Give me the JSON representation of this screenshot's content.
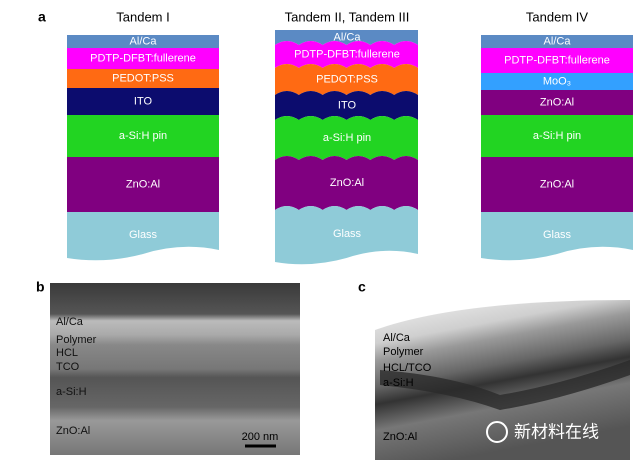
{
  "panels": [
    {
      "label": "a",
      "stacks": [
        {
          "title": "Tandem I",
          "layers": [
            "Al/Ca",
            "PDTP-DFBT:fullerene",
            "PEDOT:PSS",
            "ITO",
            "a-Si:H pin",
            "ZnO:Al",
            "Glass"
          ]
        },
        {
          "title": "Tandem II, Tandem III",
          "layers": [
            "Al/Ca",
            "PDTP-DFBT:fullerene",
            "PEDOT:PSS",
            "ITO",
            "a-Si:H pin",
            "ZnO:Al",
            "Glass"
          ]
        },
        {
          "title": "Tandem IV",
          "layers": [
            "Al/Ca",
            "PDTP-DFBT:fullerene",
            "MoO₃",
            "ZnO:Al",
            "a-Si:H pin",
            "ZnO:Al",
            "Glass"
          ]
        }
      ]
    },
    {
      "label": "b",
      "labels": [
        "Al/Ca",
        "Polymer",
        "HCL",
        "TCO",
        "a-Si:H",
        "ZnO:Al"
      ],
      "scale_bar": "200 nm"
    },
    {
      "label": "c",
      "labels": [
        "Al/Ca",
        "Polymer",
        "HCL/TCO",
        "a-Si:H",
        "ZnO:Al"
      ]
    }
  ],
  "watermark": "新材料在线"
}
